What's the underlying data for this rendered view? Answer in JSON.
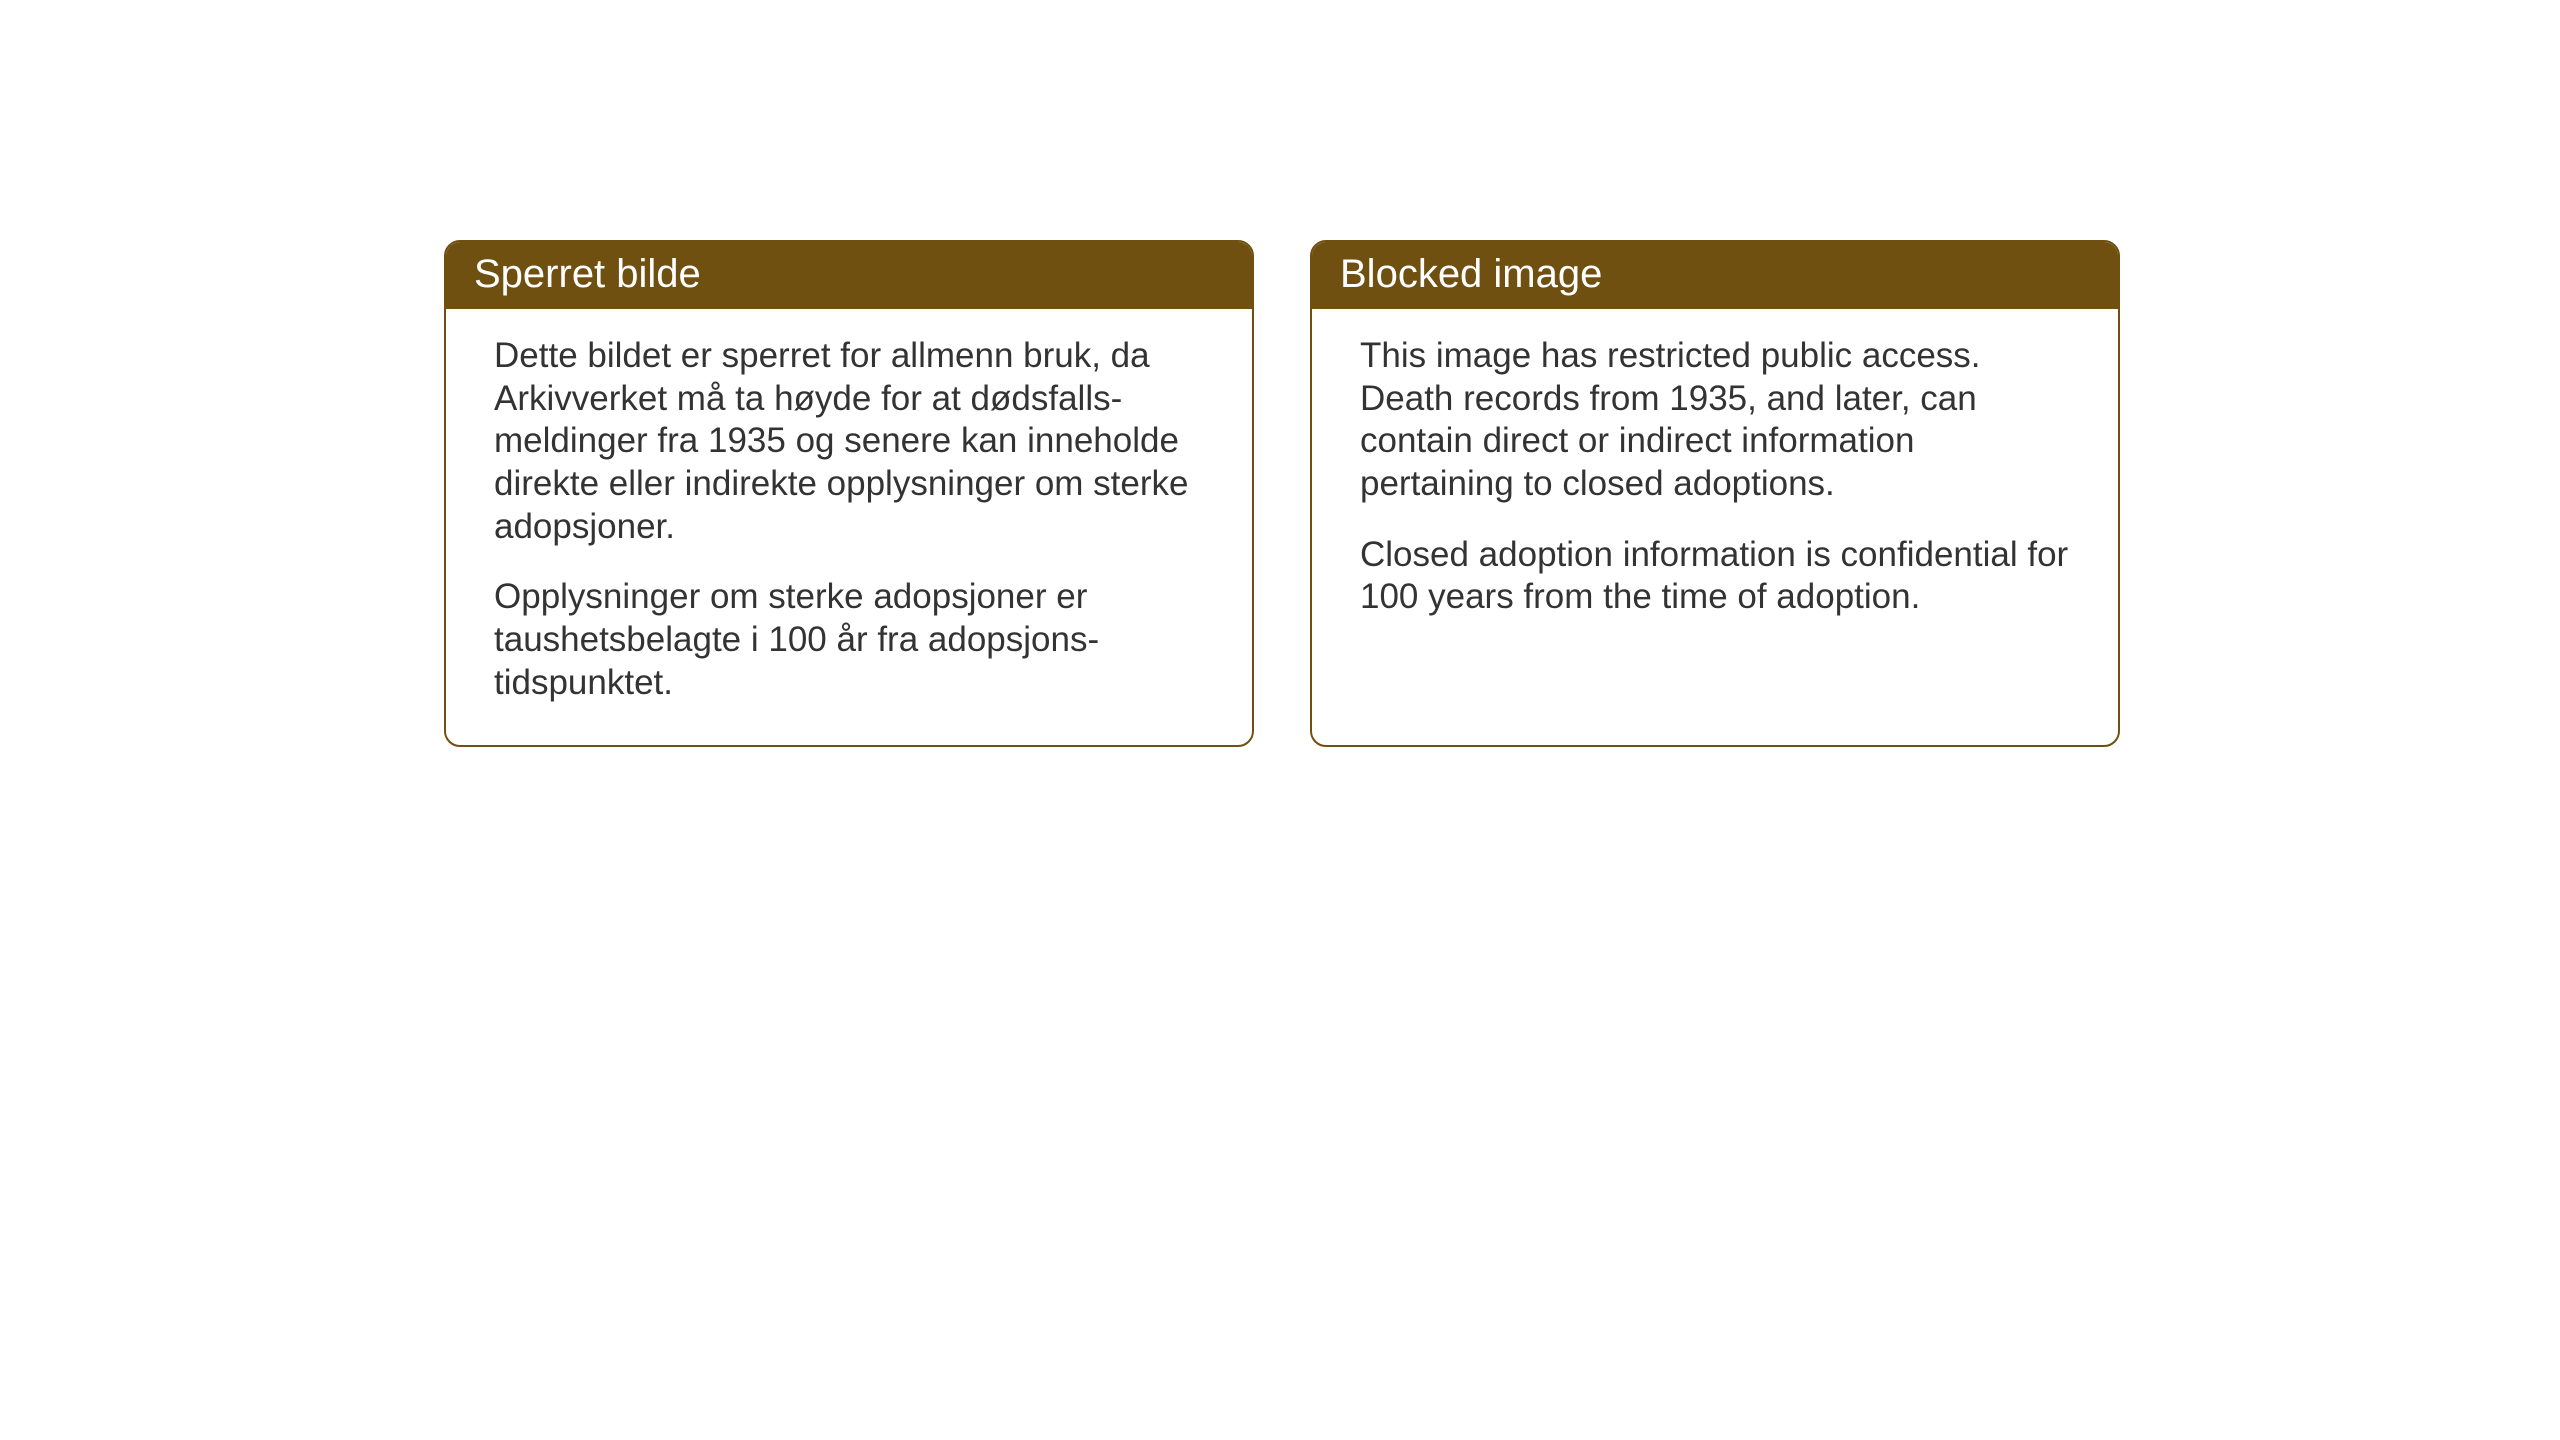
{
  "background_color": "#ffffff",
  "card_border_color": "#705010",
  "card_header_bg": "#705010",
  "card_header_text_color": "#ffffff",
  "card_body_text_color": "#333333",
  "header_fontsize": 40,
  "body_fontsize": 35,
  "cards": [
    {
      "title": "Sperret bilde",
      "paragraph1": "Dette bildet er sperret for allmenn bruk, da Arkivverket må ta høyde for at dødsfalls-meldinger fra 1935 og senere kan inneholde direkte eller indirekte opplysninger om sterke adopsjoner.",
      "paragraph2": "Opplysninger om sterke adopsjoner er taushetsbelagte i 100 år fra adopsjons-tidspunktet."
    },
    {
      "title": "Blocked image",
      "paragraph1": "This image has restricted public access. Death records from 1935, and later, can contain direct or indirect information pertaining to closed adoptions.",
      "paragraph2": "Closed adoption information is confidential for 100 years from the time of adoption."
    }
  ]
}
